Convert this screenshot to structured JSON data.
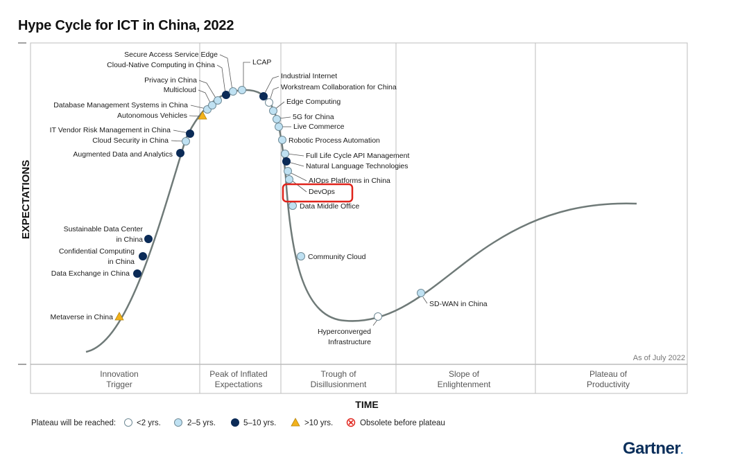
{
  "chart_data": {
    "type": "scatter",
    "title": "Hype Cycle for ICT in China, 2022",
    "ylabel": "EXPECTATIONS",
    "xlabel": "TIME",
    "as_of": "As of July 2022",
    "phases": [
      [
        "Innovation",
        "Trigger"
      ],
      [
        "Peak of Inflated",
        "Expectations"
      ],
      [
        "Trough of",
        "Disillusionment"
      ],
      [
        "Slope of",
        "Enlightenment"
      ],
      [
        "Plateau of",
        "Productivity"
      ]
    ],
    "legend": {
      "label": "Plateau will be reached:",
      "items": [
        {
          "key": "lt2",
          "label": "<2 yrs.",
          "marker": "circle",
          "color": "#ffffff"
        },
        {
          "key": "2to5",
          "label": "2–5 yrs.",
          "marker": "circle",
          "color": "#bfe1f2"
        },
        {
          "key": "5to10",
          "label": "5–10 yrs.",
          "marker": "circle",
          "color": "#0b2b57"
        },
        {
          "key": "gt10",
          "label": ">10 yrs.",
          "marker": "triangle",
          "color": "#f2b21c"
        },
        {
          "key": "obsolete",
          "label": "Obsolete before plateau",
          "marker": "x-circle",
          "color": "#e0231b"
        }
      ]
    },
    "technologies": [
      {
        "name": "Metaverse in China",
        "cat": "gt10"
      },
      {
        "name": "Data Exchange in China",
        "cat": "5to10"
      },
      {
        "name": "Confidential Computing in China",
        "cat": "5to10"
      },
      {
        "name": "Sustainable Data Center in China",
        "cat": "5to10"
      },
      {
        "name": "Augmented Data and Analytics",
        "cat": "5to10"
      },
      {
        "name": "Cloud Security in China",
        "cat": "2to5"
      },
      {
        "name": "IT Vendor Risk Management in China",
        "cat": "5to10"
      },
      {
        "name": "Autonomous Vehicles",
        "cat": "gt10"
      },
      {
        "name": "Database Management Systems in China",
        "cat": "2to5"
      },
      {
        "name": "Multicloud",
        "cat": "2to5"
      },
      {
        "name": "Privacy in China",
        "cat": "2to5"
      },
      {
        "name": "Cloud-Native Computing in China",
        "cat": "5to10"
      },
      {
        "name": "Secure Access Service Edge",
        "cat": "2to5"
      },
      {
        "name": "LCAP",
        "cat": "2to5"
      },
      {
        "name": "Industrial Internet",
        "cat": "5to10"
      },
      {
        "name": "Workstream Collaboration for China",
        "cat": "lt2"
      },
      {
        "name": "Edge Computing",
        "cat": "2to5"
      },
      {
        "name": "5G for China",
        "cat": "2to5"
      },
      {
        "name": "Live Commerce",
        "cat": "2to5"
      },
      {
        "name": "Robotic Process Automation",
        "cat": "2to5"
      },
      {
        "name": "Full Life Cycle API Management",
        "cat": "2to5"
      },
      {
        "name": "Natural Language Technologies",
        "cat": "5to10"
      },
      {
        "name": "AIOps Platforms in China",
        "cat": "2to5"
      },
      {
        "name": "DevOps",
        "cat": "2to5",
        "highlighted": true
      },
      {
        "name": "Data Middle Office",
        "cat": "2to5"
      },
      {
        "name": "Community Cloud",
        "cat": "2to5"
      },
      {
        "name": "Hyperconverged Infrastructure",
        "cat": "lt2"
      },
      {
        "name": "SD-WAN in China",
        "cat": "2to5"
      }
    ]
  },
  "brand": {
    "name": "Gartner",
    "mark": "."
  },
  "colors": {
    "curve": "#6f7a78",
    "highlight": "#e0231b",
    "grid": "#bdbdbd"
  }
}
